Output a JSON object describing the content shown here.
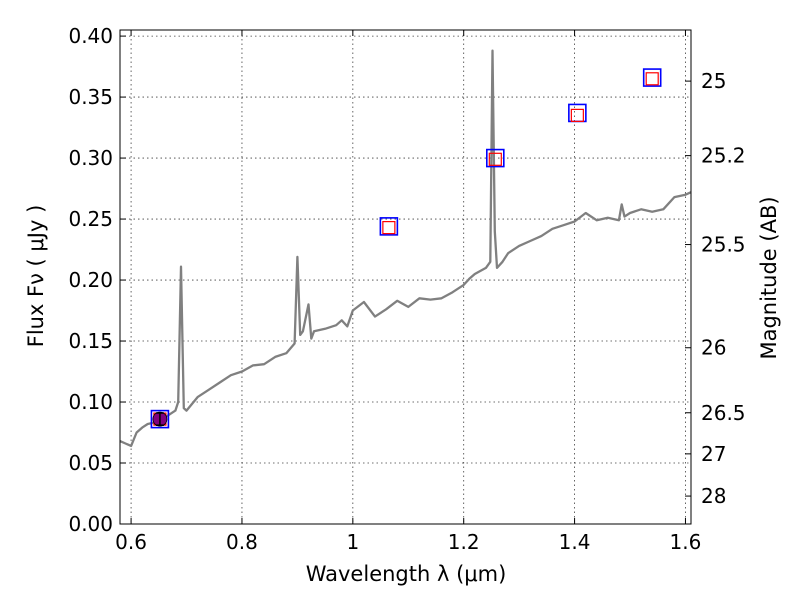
{
  "chart_data": {
    "type": "line",
    "title": "",
    "xlabel": "Wavelength  λ (μm)",
    "ylabel": "Flux  Fν  ( μJy )",
    "y2label": "Magnitude (AB)",
    "xlim": [
      0.58,
      1.61
    ],
    "ylim": [
      0.0,
      0.405
    ],
    "grid": true,
    "x_ticks": [
      0.6,
      0.8,
      1.0,
      1.2,
      1.4,
      1.6
    ],
    "x_tick_labels": [
      "0.6",
      "0.8",
      "1",
      "1.2",
      "1.4",
      "1.6"
    ],
    "y_ticks": [
      0.0,
      0.05,
      0.1,
      0.15,
      0.2,
      0.25,
      0.3,
      0.35,
      0.4
    ],
    "y_tick_labels": [
      "0.00",
      "0.05",
      "0.10",
      "0.15",
      "0.20",
      "0.25",
      "0.30",
      "0.35",
      "0.40"
    ],
    "y2_ticks": [
      {
        "label": "25",
        "flux": 0.3631
      },
      {
        "label": "25.2",
        "flux": 0.302
      },
      {
        "label": "25.5",
        "flux": 0.2291
      },
      {
        "label": "26",
        "flux": 0.1445
      },
      {
        "label": "26.5",
        "flux": 0.0912
      },
      {
        "label": "27",
        "flux": 0.0575
      },
      {
        "label": "28",
        "flux": 0.0229
      }
    ],
    "series": [
      {
        "color": "#808080",
        "x": [
          0.58,
          0.59,
          0.6,
          0.61,
          0.62,
          0.63,
          0.64,
          0.65,
          0.66,
          0.67,
          0.68,
          0.685,
          0.69,
          0.695,
          0.7,
          0.72,
          0.74,
          0.76,
          0.78,
          0.8,
          0.82,
          0.84,
          0.86,
          0.88,
          0.895,
          0.9,
          0.905,
          0.91,
          0.92,
          0.925,
          0.93,
          0.95,
          0.97,
          0.98,
          0.99,
          1.0,
          1.02,
          1.04,
          1.06,
          1.08,
          1.1,
          1.12,
          1.14,
          1.16,
          1.18,
          1.2,
          1.21,
          1.22,
          1.24,
          1.248,
          1.252,
          1.256,
          1.26,
          1.27,
          1.28,
          1.3,
          1.32,
          1.34,
          1.36,
          1.38,
          1.4,
          1.42,
          1.44,
          1.46,
          1.48,
          1.485,
          1.49,
          1.5,
          1.52,
          1.54,
          1.56,
          1.58,
          1.6,
          1.61
        ],
        "y": [
          0.068,
          0.066,
          0.064,
          0.075,
          0.079,
          0.082,
          0.083,
          0.085,
          0.087,
          0.09,
          0.093,
          0.1,
          0.211,
          0.095,
          0.093,
          0.104,
          0.11,
          0.116,
          0.122,
          0.125,
          0.13,
          0.131,
          0.137,
          0.14,
          0.148,
          0.219,
          0.155,
          0.158,
          0.18,
          0.152,
          0.158,
          0.16,
          0.163,
          0.167,
          0.162,
          0.175,
          0.182,
          0.17,
          0.176,
          0.183,
          0.178,
          0.185,
          0.184,
          0.185,
          0.19,
          0.196,
          0.201,
          0.205,
          0.21,
          0.215,
          0.388,
          0.24,
          0.21,
          0.215,
          0.222,
          0.228,
          0.232,
          0.236,
          0.242,
          0.245,
          0.248,
          0.255,
          0.249,
          0.251,
          0.249,
          0.262,
          0.252,
          0.255,
          0.258,
          0.256,
          0.258,
          0.268,
          0.27,
          0.272
        ]
      },
      {
        "marker": "square-outline",
        "color": "#0000ff",
        "x": [
          0.652,
          1.065,
          1.257,
          1.405,
          1.54
        ],
        "y": [
          0.086,
          0.244,
          0.3,
          0.337,
          0.366
        ]
      },
      {
        "marker": "square-outline-small",
        "color": "#ff0000",
        "x": [
          0.652,
          1.065,
          1.257,
          1.405,
          1.54
        ],
        "y": [
          0.086,
          0.243,
          0.299,
          0.335,
          0.365
        ]
      },
      {
        "marker": "circle-errorbar",
        "color": "#800080",
        "x": [
          0.652
        ],
        "y": [
          0.086
        ],
        "yerr": [
          0.005
        ]
      }
    ]
  }
}
